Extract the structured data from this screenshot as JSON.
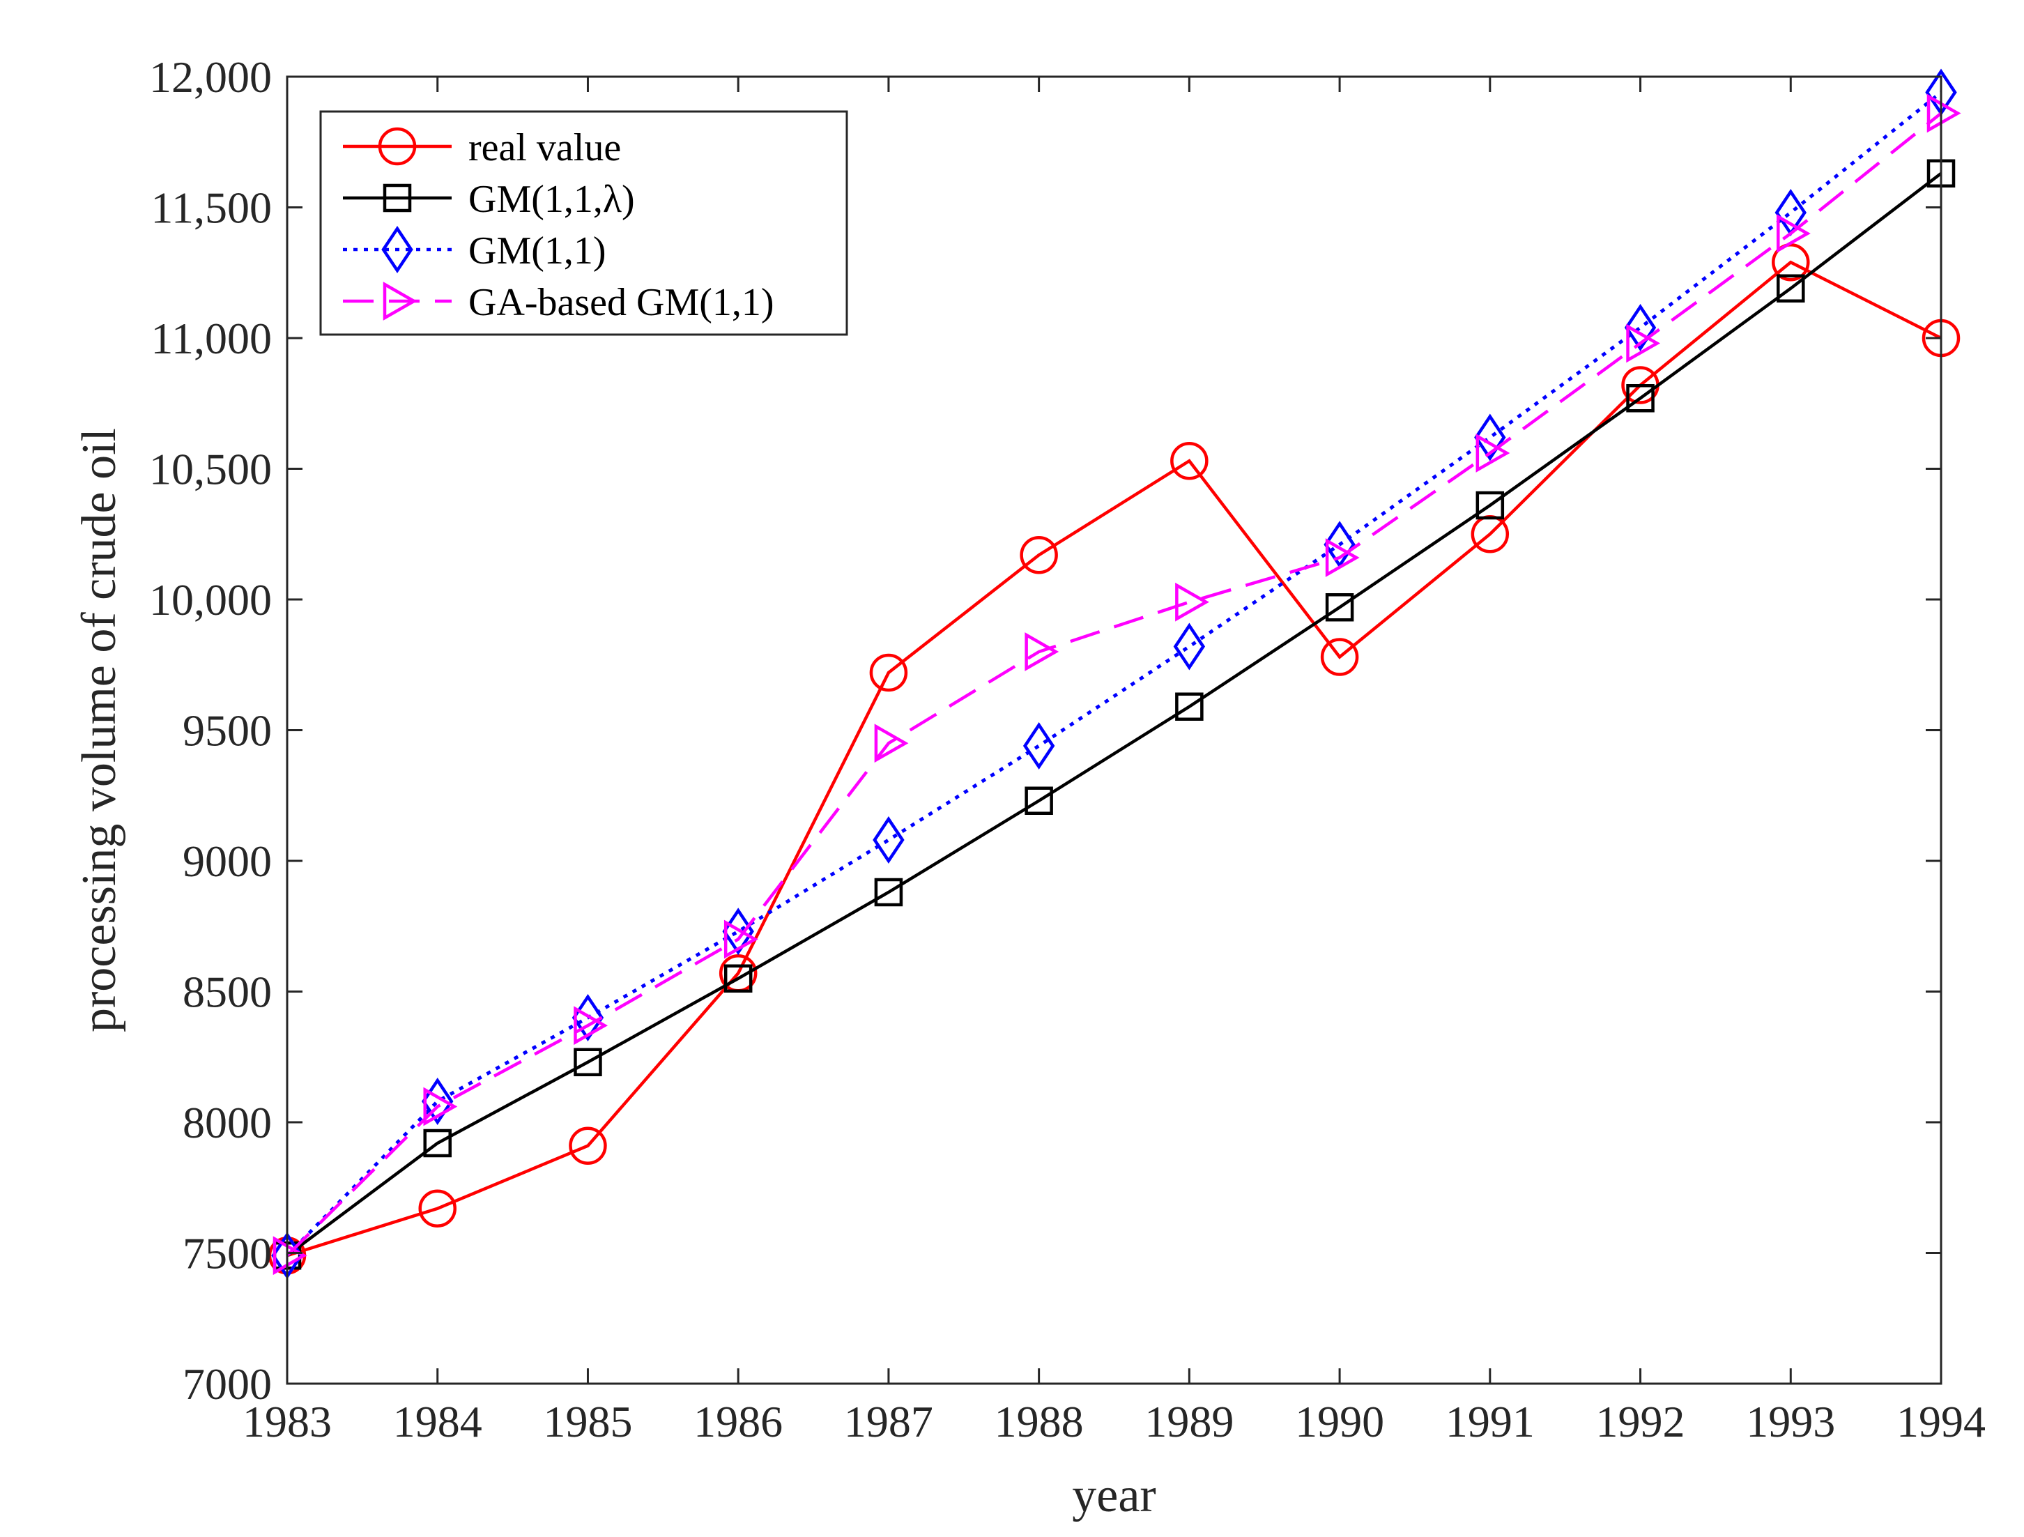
{
  "chart_data": {
    "type": "line",
    "title": "",
    "xlabel": "year",
    "ylabel": "processing volume of crude oil",
    "x": [
      1983,
      1984,
      1985,
      1986,
      1987,
      1988,
      1989,
      1990,
      1991,
      1992,
      1993,
      1994
    ],
    "x_tick_labels": [
      "1983",
      "1984",
      "1985",
      "1986",
      "1987",
      "1988",
      "1989",
      "1990",
      "1991",
      "1992",
      "1993",
      "1994"
    ],
    "y_ticks": [
      7000,
      7500,
      8000,
      8500,
      9000,
      9500,
      10000,
      10500,
      11000,
      11500,
      12000
    ],
    "y_tick_labels": [
      "7000",
      "7500",
      "8000",
      "8500",
      "9000",
      "9500",
      "10,000",
      "10,500",
      "11,000",
      "11,500",
      "12,000"
    ],
    "xlim": [
      1983,
      1994
    ],
    "ylim": [
      7000,
      12000
    ],
    "grid": false,
    "legend_position": "top-left",
    "series": [
      {
        "name": "real value",
        "color": "#ff0000",
        "marker": "circle",
        "line": "solid",
        "values": [
          7490,
          7670,
          7910,
          8570,
          9720,
          10170,
          10530,
          9780,
          10250,
          10820,
          11290,
          11000
        ]
      },
      {
        "name": "GM(1,1,λ)",
        "color": "#000000",
        "marker": "square",
        "line": "solid",
        "values": [
          7490,
          7920,
          8230,
          8550,
          8880,
          9230,
          9590,
          9970,
          10360,
          10770,
          11190,
          11630
        ]
      },
      {
        "name": "GM(1,1)",
        "color": "#0000ff",
        "marker": "diamond",
        "line": "dotted",
        "values": [
          7490,
          8080,
          8400,
          8730,
          9080,
          9440,
          9820,
          10210,
          10620,
          11040,
          11480,
          11940
        ]
      },
      {
        "name": "GA-based GM(1,1)",
        "color": "#ff00ff",
        "marker": "triangle-right",
        "line": "dashed",
        "values": [
          7490,
          8060,
          8370,
          8700,
          9450,
          9800,
          9990,
          10160,
          10560,
          10980,
          11400,
          11860
        ]
      }
    ]
  }
}
